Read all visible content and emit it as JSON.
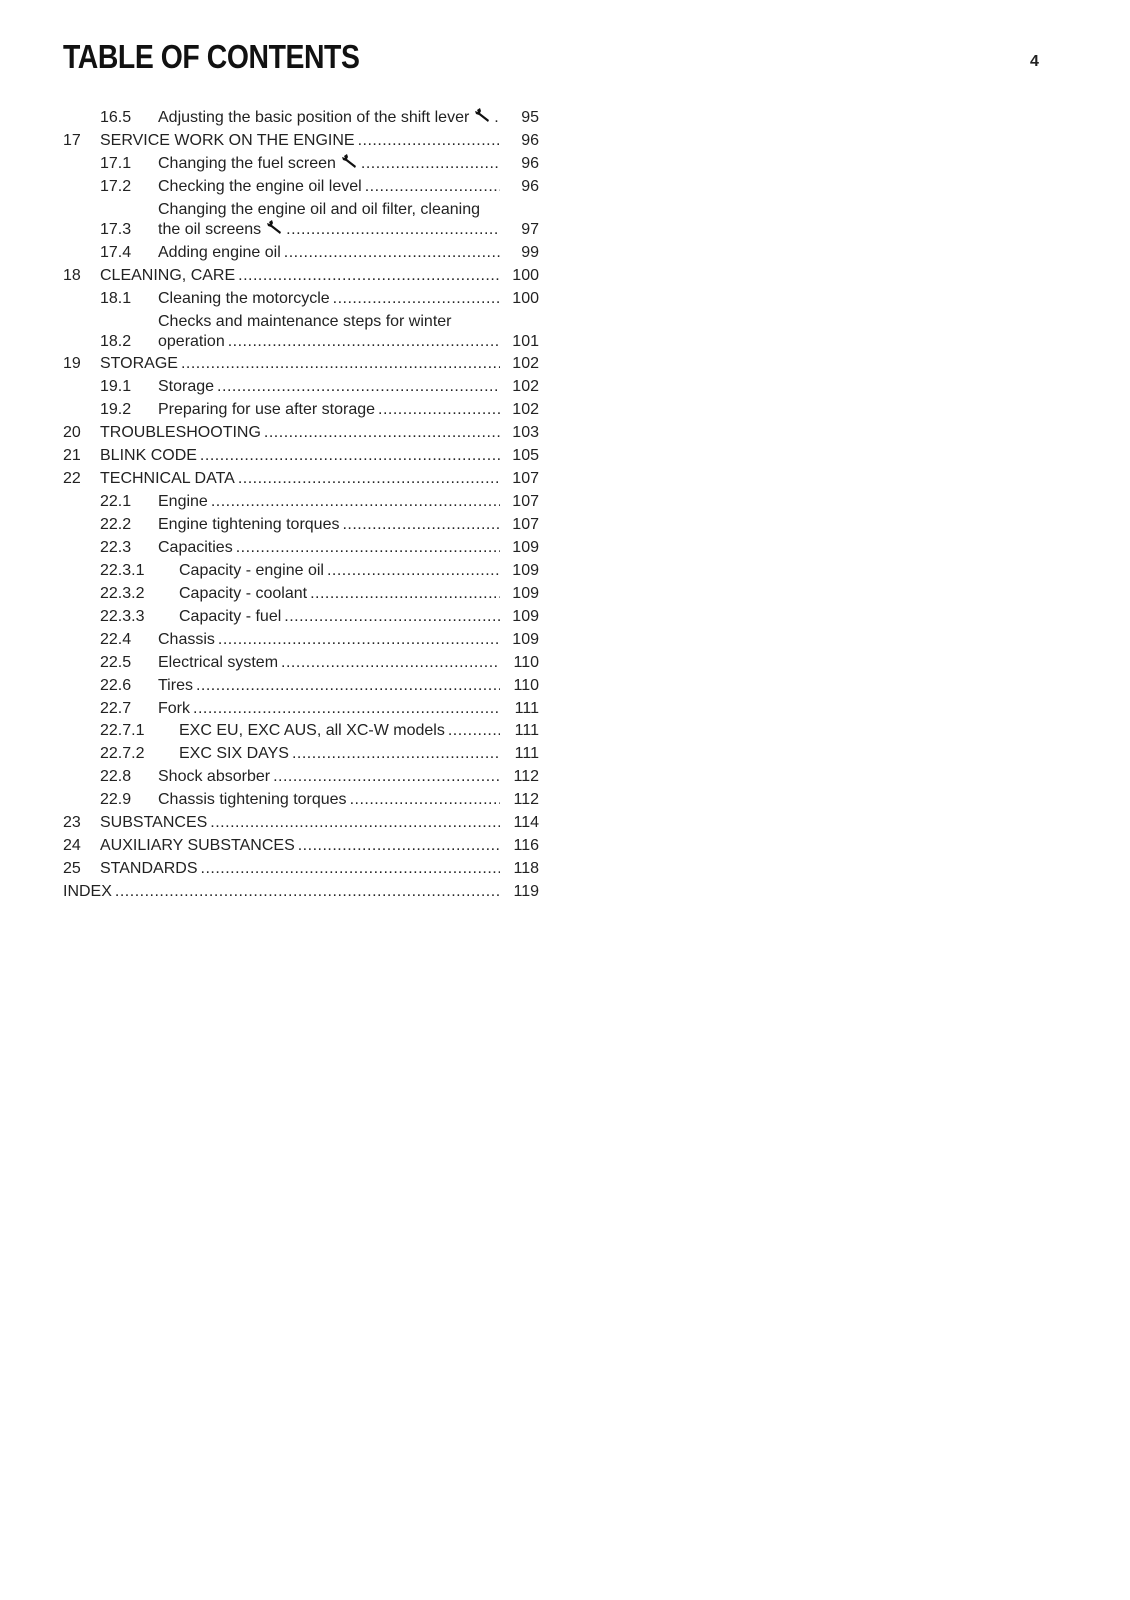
{
  "header": {
    "title": "TABLE OF CONTENTS",
    "page": 4
  },
  "entries": [
    {
      "number": "16.5",
      "title": "Adjusting the basic position of the shift lever",
      "page": 95,
      "level": 1,
      "wrench": true
    },
    {
      "number": "17",
      "title": "SERVICE WORK ON THE ENGINE",
      "page": 96,
      "level": 0
    },
    {
      "number": "17.1",
      "title": "Changing the fuel screen",
      "page": 96,
      "level": 1,
      "wrench": true
    },
    {
      "number": "17.2",
      "title": "Checking the engine oil level",
      "page": 96,
      "level": 1
    },
    {
      "number": "17.3",
      "title": "Changing the engine oil and oil filter, cleaning the oil screens",
      "page": 97,
      "level": 1,
      "wrench": true
    },
    {
      "number": "17.4",
      "title": "Adding engine oil",
      "page": 99,
      "level": 1
    },
    {
      "number": "18",
      "title": "CLEANING, CARE",
      "page": 100,
      "level": 0
    },
    {
      "number": "18.1",
      "title": "Cleaning the motorcycle",
      "page": 100,
      "level": 1
    },
    {
      "number": "18.2",
      "title": "Checks and maintenance steps for winter operation",
      "page": 101,
      "level": 1
    },
    {
      "number": "19",
      "title": "STORAGE",
      "page": 102,
      "level": 0
    },
    {
      "number": "19.1",
      "title": "Storage",
      "page": 102,
      "level": 1
    },
    {
      "number": "19.2",
      "title": "Preparing for use after storage",
      "page": 102,
      "level": 1
    },
    {
      "number": "20",
      "title": "TROUBLESHOOTING",
      "page": 103,
      "level": 0
    },
    {
      "number": "21",
      "title": "BLINK CODE",
      "page": 105,
      "level": 0
    },
    {
      "number": "22",
      "title": "TECHNICAL DATA",
      "page": 107,
      "level": 0
    },
    {
      "number": "22.1",
      "title": "Engine",
      "page": 107,
      "level": 1
    },
    {
      "number": "22.2",
      "title": "Engine tightening torques",
      "page": 107,
      "level": 1
    },
    {
      "number": "22.3",
      "title": "Capacities",
      "page": 109,
      "level": 1
    },
    {
      "number": "22.3.1",
      "title": "Capacity - engine oil",
      "page": 109,
      "level": 2
    },
    {
      "number": "22.3.2",
      "title": "Capacity - coolant",
      "page": 109,
      "level": 2
    },
    {
      "number": "22.3.3",
      "title": "Capacity - fuel",
      "page": 109,
      "level": 2
    },
    {
      "number": "22.4",
      "title": "Chassis",
      "page": 109,
      "level": 1
    },
    {
      "number": "22.5",
      "title": "Electrical system",
      "page": 110,
      "level": 1
    },
    {
      "number": "22.6",
      "title": "Tires",
      "page": 110,
      "level": 1
    },
    {
      "number": "22.7",
      "title": "Fork",
      "page": 111,
      "level": 1
    },
    {
      "number": "22.7.1",
      "title": "EXC EU, EXC AUS, all XC-W models",
      "page": 111,
      "level": 2
    },
    {
      "number": "22.7.2",
      "title": "EXC SIX DAYS",
      "page": 111,
      "level": 2
    },
    {
      "number": "22.8",
      "title": "Shock absorber",
      "page": 112,
      "level": 1
    },
    {
      "number": "22.9",
      "title": "Chassis tightening torques",
      "page": 112,
      "level": 1
    },
    {
      "number": "23",
      "title": "SUBSTANCES",
      "page": 114,
      "level": 0
    },
    {
      "number": "24",
      "title": "AUXILIARY SUBSTANCES",
      "page": 116,
      "level": 0
    },
    {
      "number": "25",
      "title": "STANDARDS",
      "page": 118,
      "level": 0
    },
    {
      "title": "INDEX",
      "page": 119,
      "level": 0
    }
  ]
}
